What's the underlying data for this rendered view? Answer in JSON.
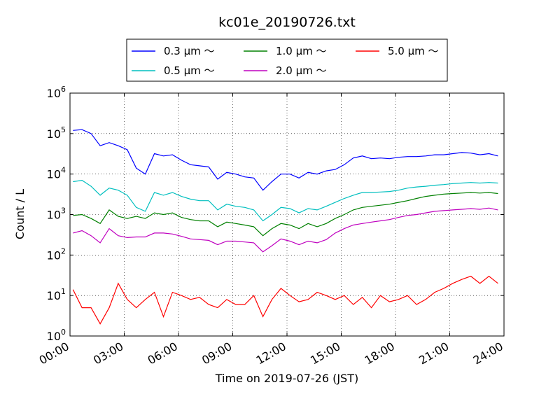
{
  "chart_data": {
    "type": "line",
    "title": "kc01e_20190726.txt",
    "xlabel": "Time on 2019-07-26 (JST)",
    "ylabel": "Count / L",
    "yscale": "log",
    "ylim": [
      1,
      1000000
    ],
    "xlim": [
      "00:00",
      "24:00"
    ],
    "grid": true,
    "legend_position": "top-center",
    "x_ticks": [
      "00:00",
      "03:00",
      "06:00",
      "09:00",
      "12:00",
      "15:00",
      "18:00",
      "21:00",
      "24:00"
    ],
    "y_ticks": [
      {
        "base": "10",
        "exp": "0",
        "value": 1
      },
      {
        "base": "10",
        "exp": "1",
        "value": 10
      },
      {
        "base": "10",
        "exp": "2",
        "value": 100
      },
      {
        "base": "10",
        "exp": "3",
        "value": 1000
      },
      {
        "base": "10",
        "exp": "4",
        "value": 10000
      },
      {
        "base": "10",
        "exp": "5",
        "value": 100000
      },
      {
        "base": "10",
        "exp": "6",
        "value": 1000000
      }
    ],
    "x": [
      "00:10",
      "00:40",
      "01:10",
      "01:40",
      "02:10",
      "02:40",
      "03:10",
      "03:40",
      "04:10",
      "04:40",
      "05:10",
      "05:40",
      "06:10",
      "06:40",
      "07:10",
      "07:40",
      "08:10",
      "08:40",
      "09:10",
      "09:40",
      "10:10",
      "10:40",
      "11:10",
      "11:40",
      "12:10",
      "12:40",
      "13:10",
      "13:40",
      "14:10",
      "14:40",
      "15:10",
      "15:40",
      "16:10",
      "16:40",
      "17:10",
      "17:40",
      "18:10",
      "18:40",
      "19:10",
      "19:40",
      "20:10",
      "20:40",
      "21:10",
      "21:40",
      "22:10",
      "22:40",
      "23:10",
      "23:40"
    ],
    "series": [
      {
        "name": "0.3 μm ～",
        "color": "#0000ff",
        "values": [
          120000,
          125000,
          100000,
          50000,
          60000,
          50000,
          40000,
          14000,
          10000,
          32000,
          28000,
          30000,
          22000,
          17000,
          16000,
          15000,
          7500,
          11000,
          10000,
          8500,
          8000,
          4000,
          6500,
          10000,
          10000,
          8000,
          11000,
          10000,
          12000,
          13000,
          17000,
          25000,
          28000,
          24000,
          25000,
          24000,
          26000,
          27000,
          27000,
          28000,
          30000,
          30000,
          32000,
          34000,
          33000,
          30000,
          32000,
          28000
        ]
      },
      {
        "name": "0.5 μm ～",
        "color": "#00bfbf",
        "values": [
          6500,
          7000,
          5000,
          3000,
          4500,
          4000,
          3000,
          1500,
          1200,
          3500,
          3000,
          3500,
          2800,
          2400,
          2200,
          2200,
          1300,
          1800,
          1600,
          1500,
          1300,
          700,
          1000,
          1500,
          1400,
          1100,
          1400,
          1300,
          1600,
          2000,
          2500,
          3000,
          3500,
          3500,
          3600,
          3700,
          4000,
          4500,
          4800,
          5000,
          5300,
          5500,
          5800,
          6000,
          6200,
          6000,
          6200,
          6000
        ]
      },
      {
        "name": "1.0 μm ～",
        "color": "#008000",
        "values": [
          950,
          1000,
          800,
          600,
          1300,
          900,
          800,
          900,
          800,
          1100,
          1000,
          1100,
          850,
          750,
          700,
          700,
          500,
          650,
          600,
          550,
          500,
          300,
          450,
          600,
          550,
          450,
          600,
          500,
          600,
          800,
          1000,
          1300,
          1500,
          1600,
          1700,
          1800,
          2000,
          2200,
          2500,
          2800,
          3000,
          3200,
          3300,
          3400,
          3500,
          3400,
          3500,
          3300
        ]
      },
      {
        "name": "2.0 μm ～",
        "color": "#bf00bf",
        "values": [
          350,
          400,
          300,
          200,
          450,
          300,
          270,
          280,
          280,
          350,
          350,
          330,
          290,
          250,
          240,
          230,
          180,
          220,
          220,
          210,
          200,
          120,
          170,
          250,
          220,
          180,
          220,
          200,
          240,
          350,
          450,
          550,
          600,
          650,
          700,
          750,
          850,
          950,
          1000,
          1100,
          1200,
          1250,
          1300,
          1350,
          1400,
          1350,
          1450,
          1300
        ]
      },
      {
        "name": "5.0 μm ～",
        "color": "#ff0000",
        "values": [
          14,
          5,
          5,
          2,
          5,
          20,
          8,
          5,
          8,
          12,
          3,
          12,
          10,
          8,
          9,
          6,
          5,
          8,
          6,
          6,
          10,
          3,
          8,
          15,
          10,
          7,
          8,
          12,
          10,
          8,
          10,
          6,
          9,
          5,
          10,
          7,
          8,
          10,
          6,
          8,
          12,
          15,
          20,
          25,
          30,
          20,
          30,
          20
        ]
      }
    ]
  }
}
